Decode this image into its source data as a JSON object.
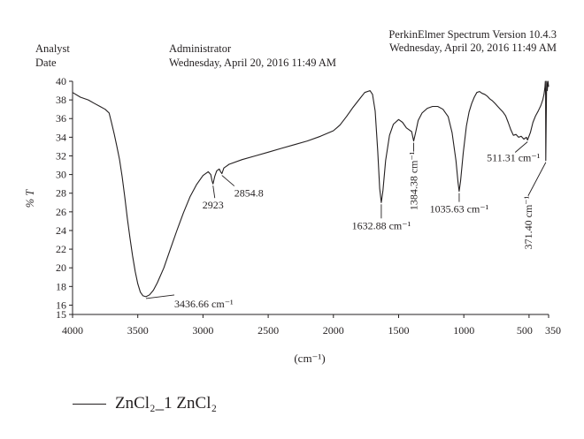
{
  "header": {
    "analyst_label": "Analyst",
    "date_label": "Date",
    "analyst_value": "Administrator",
    "date_value": "Wednesday, April 20, 2016 11:49 AM",
    "software": "PerkinElmer Spectrum Version 10.4.3",
    "software_date": "Wednesday, April 20, 2016 11:49 AM"
  },
  "chart_data": {
    "type": "line",
    "ylabel": "% T",
    "xlabel": "(cm⁻¹)",
    "xlim": [
      4000,
      350
    ],
    "ylim": [
      15,
      40
    ],
    "x_ticks": [
      4000,
      3500,
      3000,
      2500,
      2000,
      1500,
      1000,
      500,
      350
    ],
    "x_tick_labels": [
      "4000",
      "3500",
      "3000",
      "2500",
      "2000",
      "1500",
      "1000",
      "500",
      "350"
    ],
    "y_ticks": [
      15,
      16,
      18,
      20,
      22,
      24,
      26,
      28,
      30,
      32,
      34,
      36,
      38,
      40
    ],
    "grid": false,
    "legend_position": "bottom-left",
    "series": [
      {
        "name": "ZnCl₂_1 ZnCl₂",
        "color": "#231f20",
        "points": [
          [
            4000,
            38.8
          ],
          [
            3940,
            38.3
          ],
          [
            3880,
            38.0
          ],
          [
            3830,
            37.6
          ],
          [
            3790,
            37.3
          ],
          [
            3750,
            37.0
          ],
          [
            3720,
            36.6
          ],
          [
            3700,
            35.5
          ],
          [
            3680,
            34.3
          ],
          [
            3660,
            33.0
          ],
          [
            3640,
            31.6
          ],
          [
            3620,
            29.8
          ],
          [
            3600,
            27.6
          ],
          [
            3580,
            25.3
          ],
          [
            3560,
            23.2
          ],
          [
            3540,
            21.3
          ],
          [
            3520,
            19.6
          ],
          [
            3500,
            18.3
          ],
          [
            3480,
            17.4
          ],
          [
            3460,
            17.0
          ],
          [
            3436.66,
            16.9
          ],
          [
            3410,
            17.1
          ],
          [
            3380,
            17.6
          ],
          [
            3350,
            18.4
          ],
          [
            3300,
            20.0
          ],
          [
            3250,
            22.0
          ],
          [
            3200,
            24.0
          ],
          [
            3150,
            25.9
          ],
          [
            3100,
            27.6
          ],
          [
            3050,
            28.9
          ],
          [
            3000,
            29.9
          ],
          [
            2960,
            30.3
          ],
          [
            2940,
            30.0
          ],
          [
            2930,
            29.3
          ],
          [
            2923,
            29.0
          ],
          [
            2910,
            29.8
          ],
          [
            2895,
            30.4
          ],
          [
            2875,
            30.6
          ],
          [
            2865,
            30.3
          ],
          [
            2854.8,
            30.1
          ],
          [
            2840,
            30.7
          ],
          [
            2800,
            31.1
          ],
          [
            2700,
            31.6
          ],
          [
            2600,
            32.0
          ],
          [
            2500,
            32.4
          ],
          [
            2400,
            32.8
          ],
          [
            2300,
            33.2
          ],
          [
            2200,
            33.6
          ],
          [
            2100,
            34.1
          ],
          [
            2000,
            34.7
          ],
          [
            1950,
            35.3
          ],
          [
            1900,
            36.2
          ],
          [
            1850,
            37.2
          ],
          [
            1800,
            38.1
          ],
          [
            1760,
            38.8
          ],
          [
            1720,
            39.0
          ],
          [
            1700,
            38.6
          ],
          [
            1680,
            36.8
          ],
          [
            1660,
            32.5
          ],
          [
            1645,
            28.5
          ],
          [
            1632.88,
            27.0
          ],
          [
            1620,
            28.3
          ],
          [
            1600,
            31.5
          ],
          [
            1570,
            34.2
          ],
          [
            1540,
            35.4
          ],
          [
            1500,
            35.9
          ],
          [
            1470,
            35.6
          ],
          [
            1440,
            35.0
          ],
          [
            1420,
            34.8
          ],
          [
            1400,
            34.6
          ],
          [
            1384.38,
            33.6
          ],
          [
            1370,
            34.5
          ],
          [
            1350,
            35.8
          ],
          [
            1320,
            36.6
          ],
          [
            1280,
            37.1
          ],
          [
            1240,
            37.3
          ],
          [
            1200,
            37.3
          ],
          [
            1160,
            37.0
          ],
          [
            1120,
            36.2
          ],
          [
            1090,
            34.5
          ],
          [
            1060,
            31.5
          ],
          [
            1045,
            29.2
          ],
          [
            1035.63,
            28.2
          ],
          [
            1025,
            29.3
          ],
          [
            1005,
            32.3
          ],
          [
            980,
            35.2
          ],
          [
            960,
            36.7
          ],
          [
            940,
            37.6
          ],
          [
            920,
            38.3
          ],
          [
            900,
            38.8
          ],
          [
            880,
            38.9
          ],
          [
            860,
            38.7
          ],
          [
            840,
            38.6
          ],
          [
            820,
            38.4
          ],
          [
            800,
            38.1
          ],
          [
            780,
            37.9
          ],
          [
            760,
            37.6
          ],
          [
            740,
            37.3
          ],
          [
            720,
            37.0
          ],
          [
            700,
            36.7
          ],
          [
            680,
            36.3
          ],
          [
            660,
            35.6
          ],
          [
            640,
            34.8
          ],
          [
            620,
            34.2
          ],
          [
            600,
            34.3
          ],
          [
            580,
            34.0
          ],
          [
            560,
            34.1
          ],
          [
            540,
            33.8
          ],
          [
            520,
            34.0
          ],
          [
            511.31,
            33.7
          ],
          [
            490,
            34.5
          ],
          [
            470,
            35.6
          ],
          [
            450,
            36.3
          ],
          [
            430,
            36.8
          ],
          [
            410,
            37.4
          ],
          [
            395,
            38.0
          ],
          [
            385,
            38.6
          ],
          [
            378,
            39.4
          ],
          [
            375,
            40.0
          ],
          [
            373,
            38.5
          ],
          [
            371.4,
            31.5
          ],
          [
            368,
            36.0
          ],
          [
            365,
            40.0
          ],
          [
            360,
            39.0
          ],
          [
            355,
            40.0
          ],
          [
            350,
            39.4
          ]
        ]
      }
    ],
    "annotations": [
      {
        "text": "3436.66 cm⁻¹",
        "x": 3436.66,
        "y": 16.9
      },
      {
        "text": "2923",
        "x": 2923,
        "y": 29.0
      },
      {
        "text": "2854.8",
        "x": 2854.8,
        "y": 30.1
      },
      {
        "text": "1632.88 cm⁻¹",
        "x": 1632.88,
        "y": 27.0
      },
      {
        "text": "1384.38 cm⁻¹",
        "x": 1384.38,
        "y": 33.6
      },
      {
        "text": "1035.63 cm⁻¹",
        "x": 1035.63,
        "y": 28.2
      },
      {
        "text": "511.31 cm⁻¹",
        "x": 511.31,
        "y": 33.7
      },
      {
        "text": "371.40 cm⁻¹",
        "x": 371.4,
        "y": 31.5
      }
    ]
  }
}
